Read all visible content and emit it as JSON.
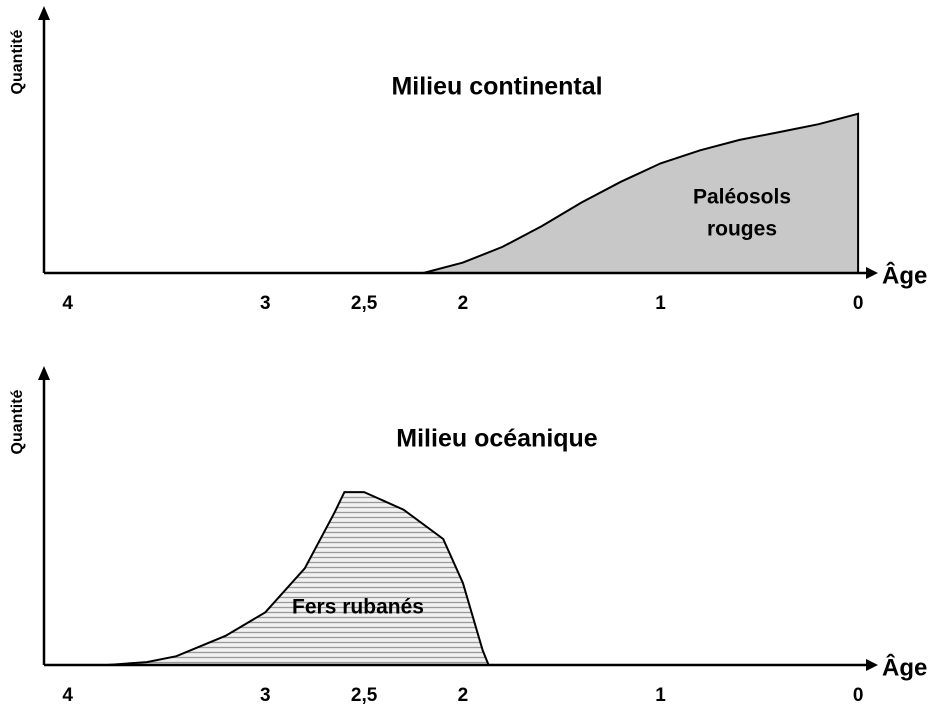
{
  "chart_data": [
    {
      "type": "area",
      "title": "Milieu continental",
      "y_label": "Quantité",
      "x_label": "Âge",
      "annotation": [
        "Paléosols",
        "rouges"
      ],
      "x": [
        2.2,
        2.0,
        1.8,
        1.6,
        1.4,
        1.2,
        1.0,
        0.8,
        0.6,
        0.4,
        0.2,
        0
      ],
      "values": [
        0,
        4,
        10,
        18,
        27,
        35,
        42,
        47,
        51,
        54,
        57,
        61
      ],
      "color": "#c8c8c8",
      "fill": "solid",
      "xlim": [
        4.12,
        -0.06
      ],
      "ylim": [
        0,
        100
      ],
      "xticks": [
        4,
        3,
        {
          "value": 2.5,
          "label": "2,5"
        },
        2,
        1,
        0
      ]
    },
    {
      "type": "area",
      "title": "Milieu océanique",
      "y_label": "Quantité",
      "x_label": "Âge",
      "annotation": [
        "Fers rubanés"
      ],
      "x": [
        3.8,
        3.6,
        3.45,
        3.2,
        3.0,
        2.8,
        2.65,
        2.6,
        2.5,
        2.3,
        2.1,
        2.0,
        1.9,
        1.87
      ],
      "values": [
        0,
        1,
        3,
        10,
        18,
        33,
        52,
        59,
        59,
        53,
        43,
        28,
        5,
        0
      ],
      "color": "#9a9a9a",
      "fill": "hatched",
      "xlim": [
        4.12,
        -0.06
      ],
      "ylim": [
        0,
        100
      ],
      "xticks": [
        4,
        3,
        {
          "value": 2.5,
          "label": "2,5"
        },
        2,
        1,
        0
      ]
    }
  ]
}
